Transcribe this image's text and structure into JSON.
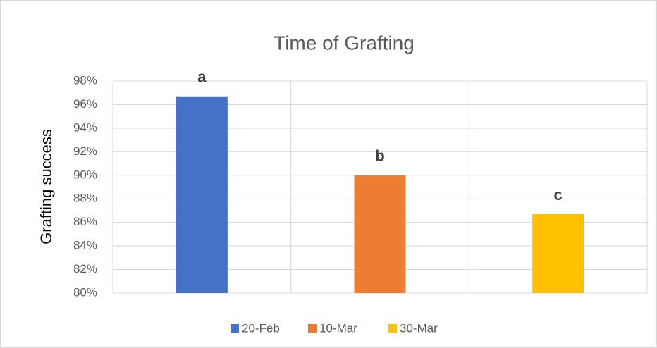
{
  "chart_data": {
    "type": "bar",
    "title": "Time of Grafting",
    "y_label": "Grafting success",
    "categories": [
      "20-Feb",
      "10-Mar",
      "30-Mar"
    ],
    "values": [
      96.7,
      90,
      86.7
    ],
    "colors": [
      "#4472c4",
      "#ed7d31",
      "#ffc000"
    ],
    "annotations": [
      "a",
      "b",
      "c"
    ],
    "ylim": [
      80,
      98
    ],
    "yticks": [
      {
        "value": 80,
        "label": "80%"
      },
      {
        "value": 82,
        "label": "82%"
      },
      {
        "value": 84,
        "label": "84%"
      },
      {
        "value": 86,
        "label": "86%"
      },
      {
        "value": 88,
        "label": "88%"
      },
      {
        "value": 90,
        "label": "90%"
      },
      {
        "value": 92,
        "label": "92%"
      },
      {
        "value": 94,
        "label": "94%"
      },
      {
        "value": 96,
        "label": "96%"
      },
      {
        "value": 98,
        "label": "98%"
      }
    ],
    "grid": true,
    "legend": "bottom"
  }
}
